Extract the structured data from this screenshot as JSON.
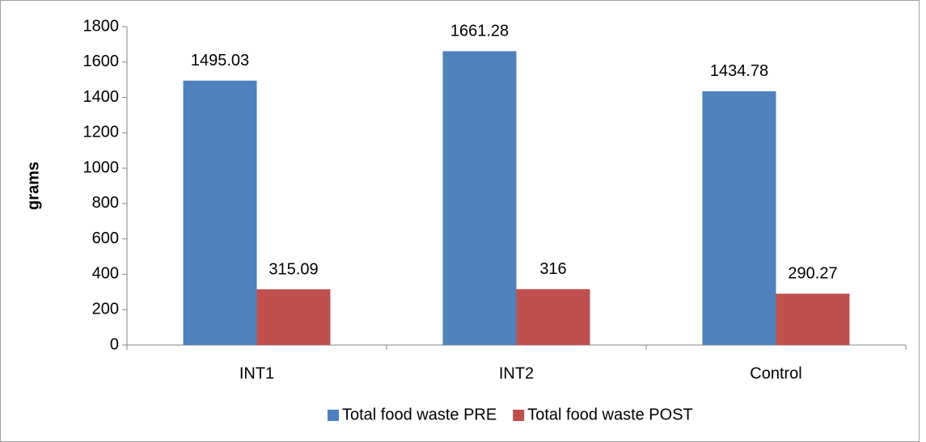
{
  "chart_data": {
    "type": "bar",
    "y_label": "grams",
    "categories": [
      "INT1",
      "INT2",
      "Control"
    ],
    "series": [
      {
        "name": "Total food waste PRE",
        "color": "#4f81bd",
        "values": [
          1495.03,
          1661.28,
          1434.78
        ]
      },
      {
        "name": "Total food waste POST",
        "color": "#c0504d",
        "values": [
          315.09,
          316,
          290.27
        ]
      }
    ],
    "ylim": [
      0,
      1800
    ],
    "yticks": [
      0,
      200,
      400,
      600,
      800,
      1000,
      1200,
      1400,
      1600,
      1800
    ],
    "grid": false,
    "legend": "bottom"
  }
}
